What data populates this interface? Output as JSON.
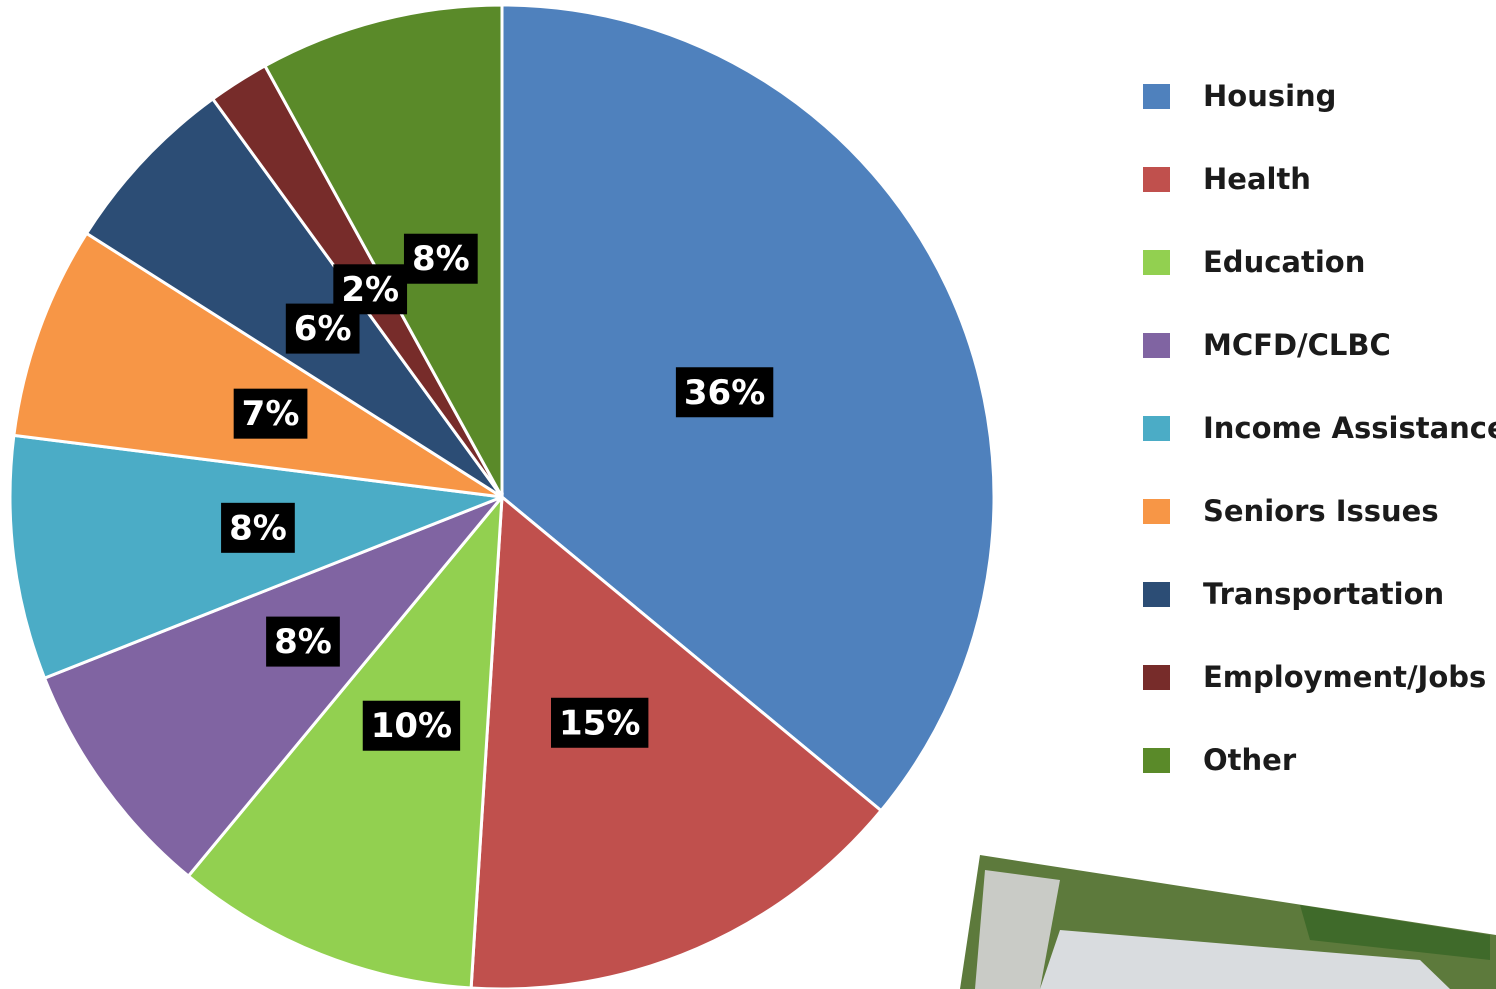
{
  "chart_data": {
    "type": "pie",
    "categories": [
      "Housing",
      "Health",
      "Education",
      "MCFD/CLBC",
      "Income Assistance",
      "Seniors Issues",
      "Transportation",
      "Employment/Jobs",
      "Other"
    ],
    "values": [
      36,
      15,
      10,
      8,
      8,
      7,
      6,
      2,
      8
    ],
    "value_labels": [
      "36%",
      "15%",
      "10%",
      "8%",
      "8%",
      "7%",
      "6%",
      "2%",
      "8%"
    ],
    "colors": [
      "#4f81bd",
      "#c0504d",
      "#92d050",
      "#8064a2",
      "#4bacc6",
      "#f79646",
      "#2c4d75",
      "#772c2a",
      "#5a8a29"
    ],
    "legend": "right"
  }
}
